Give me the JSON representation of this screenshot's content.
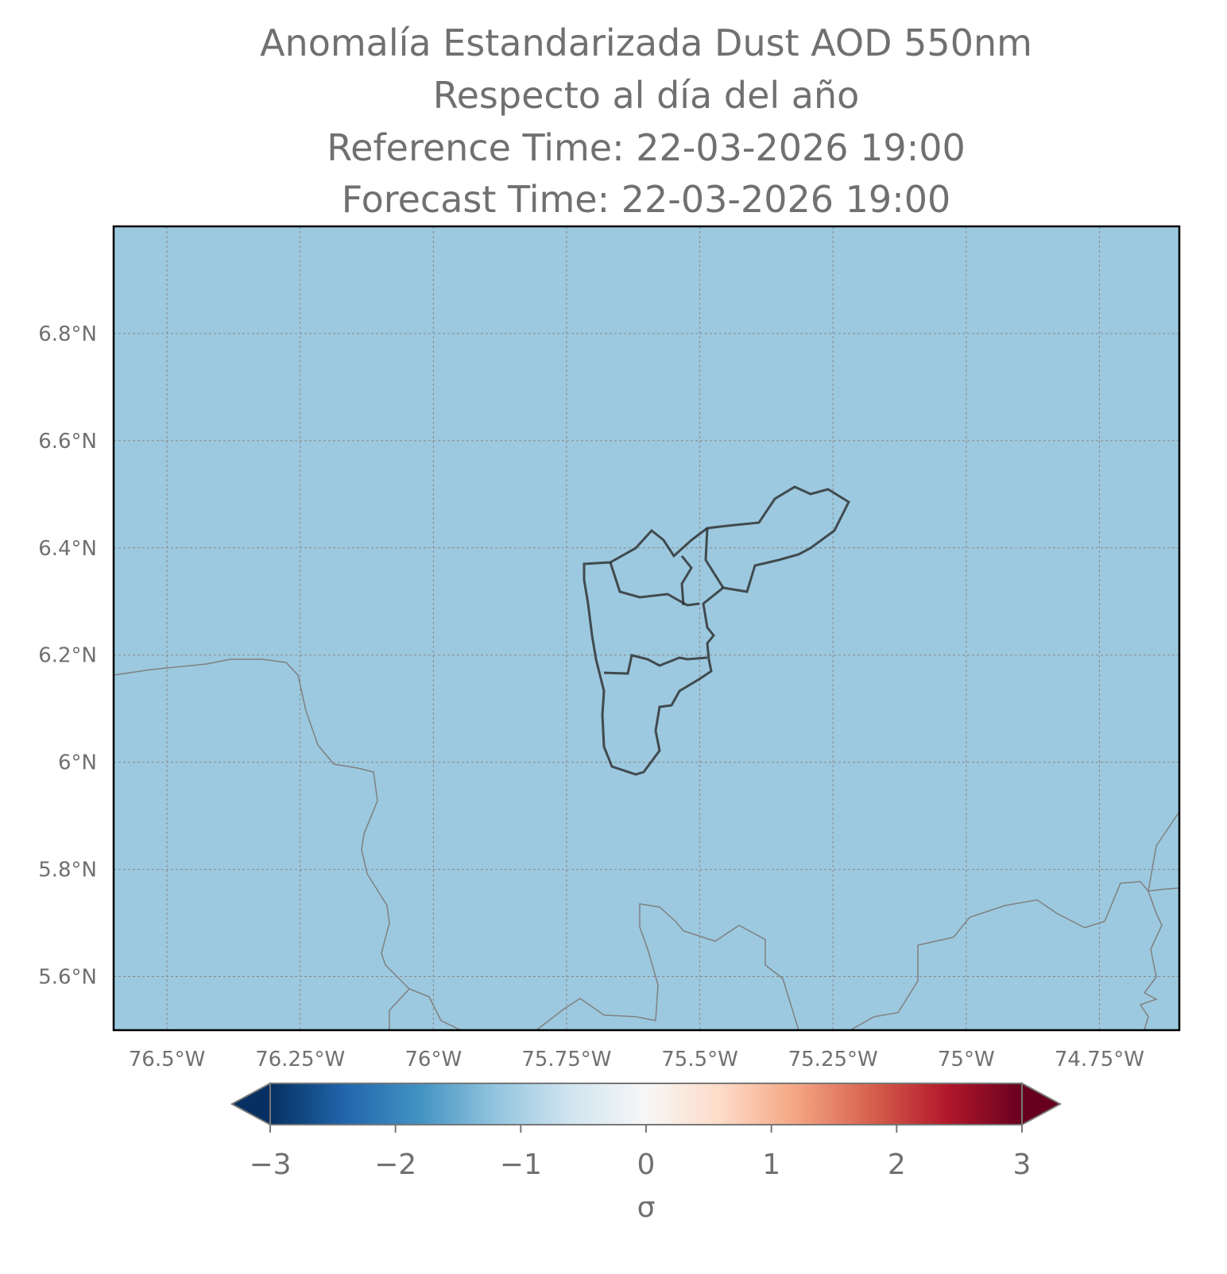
{
  "chart_data": {
    "type": "map",
    "title": [
      "Anomalía Estandarizada Dust AOD 550nm",
      "Respecto al día del año",
      "Reference Time: 22-03-2026 19:00",
      "Forecast Time: 22-03-2026 19:00"
    ],
    "xlim": [
      -76.6,
      -74.6
    ],
    "ylim": [
      5.5,
      7.0
    ],
    "xticks": [
      {
        "value": -76.5,
        "label": "76.5°W"
      },
      {
        "value": -76.25,
        "label": "76.25°W"
      },
      {
        "value": -76.0,
        "label": "76°W"
      },
      {
        "value": -75.75,
        "label": "75.75°W"
      },
      {
        "value": -75.5,
        "label": "75.5°W"
      },
      {
        "value": -75.25,
        "label": "75.25°W"
      },
      {
        "value": -75.0,
        "label": "75°W"
      },
      {
        "value": -74.75,
        "label": "74.75°W"
      }
    ],
    "yticks": [
      {
        "value": 5.6,
        "label": "5.6°N"
      },
      {
        "value": 5.8,
        "label": "5.8°N"
      },
      {
        "value": 6.0,
        "label": "6°N"
      },
      {
        "value": 6.2,
        "label": "6.2°N"
      },
      {
        "value": 6.4,
        "label": "6.4°N"
      },
      {
        "value": 6.6,
        "label": "6.6°N"
      },
      {
        "value": 6.8,
        "label": "6.8°N"
      }
    ],
    "grid": true,
    "fill_color": "#9cc9df",
    "colorbar": {
      "label": "σ",
      "clim": [
        -3,
        3
      ],
      "ticks": [
        {
          "value": -3,
          "label": "−3"
        },
        {
          "value": -2,
          "label": "−2"
        },
        {
          "value": -1,
          "label": "−1"
        },
        0,
        1,
        2,
        3
      ],
      "colors": [
        "#053061",
        "#2166ac",
        "#4393c3",
        "#92c5de",
        "#d1e5f0",
        "#f7f7f7",
        "#fddbc7",
        "#f4a582",
        "#d6604d",
        "#b2182b",
        "#67001f"
      ]
    }
  }
}
